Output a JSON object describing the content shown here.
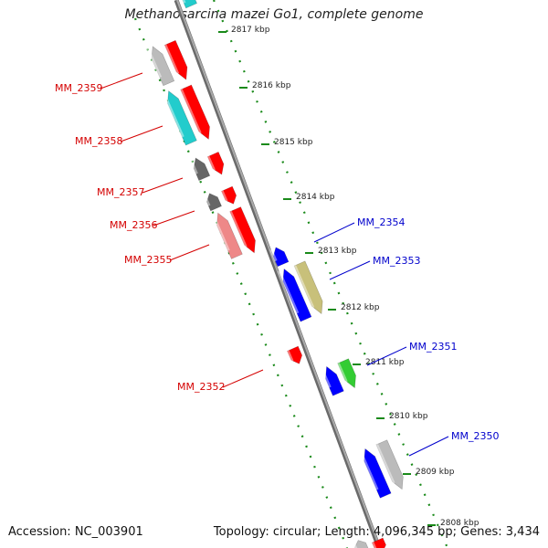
{
  "title": "Methanosarcina mazei Go1, complete genome",
  "footer": {
    "accession": "Accession: NC_003901",
    "topology": "Topology: circular; Length: 4,096,345 bp; Genes: 3,434"
  },
  "ruler": {
    "labels": [
      "2817 kbp",
      "2816 kbp",
      "2815 kbp",
      "2814 kbp",
      "2813 kbp",
      "2812 kbp",
      "2811 kbp",
      "2810 kbp",
      "2809 kbp",
      "2808 kbp"
    ]
  },
  "genes_left": [
    {
      "label": "MM_2359",
      "color": "#d40000"
    },
    {
      "label": "MM_2358",
      "color": "#d40000"
    },
    {
      "label": "MM_2357",
      "color": "#d40000"
    },
    {
      "label": "MM_2356",
      "color": "#d40000"
    },
    {
      "label": "MM_2355",
      "color": "#d40000"
    },
    {
      "label": "MM_2352",
      "color": "#d40000"
    }
  ],
  "genes_right": [
    {
      "label": "MM_2354",
      "color": "#0000cc"
    },
    {
      "label": "MM_2353",
      "color": "#0000cc"
    },
    {
      "label": "MM_2351",
      "color": "#0000cc"
    },
    {
      "label": "MM_2350",
      "color": "#0000cc"
    }
  ],
  "colors": {
    "backbone": "#888888",
    "tick": "#1a8a1a",
    "forward_strand": "#ff0000",
    "reverse_strand": "#0000ff",
    "cyan": "#22cccc",
    "grey": "#bbbbbb",
    "dark_grey": "#666666",
    "pink": "#ee8888",
    "olive": "#c8c07a",
    "green": "#33cc33"
  }
}
